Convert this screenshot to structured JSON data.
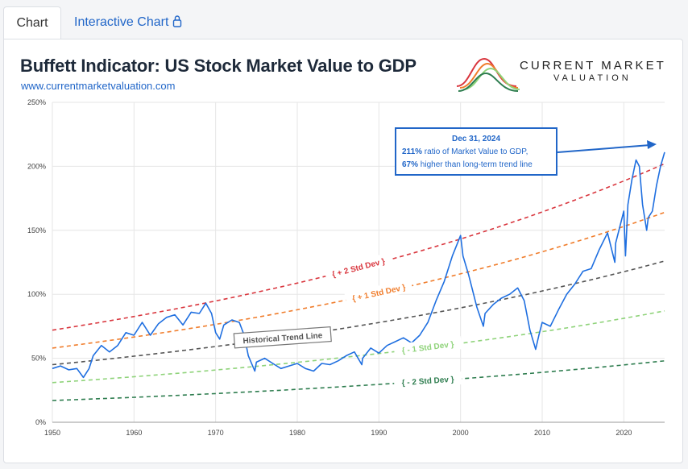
{
  "tabs": [
    {
      "label": "Chart",
      "active": true
    },
    {
      "label": "Interactive Chart",
      "icon": "lock-icon",
      "active": false
    }
  ],
  "header": {
    "title": "Buffett Indicator: US Stock Market Value to GDP",
    "website": "www.currentmarketvaluation.com",
    "logo_line1": "CURRENT MARKET",
    "logo_line2": "VALUATION"
  },
  "colors": {
    "series": "#1f6fe0",
    "plus2": "#d9363e",
    "plus1": "#f07d2c",
    "trend": "#555555",
    "minus1": "#8fd37a",
    "minus2": "#2e7d4f",
    "link": "#2166c8"
  },
  "annotation": {
    "date": "Dec 31, 2024",
    "line2_bold": "211%",
    "line2_rest": " ratio of Market Value to GDP,",
    "line3_bold": "67%",
    "line3_rest": " higher than long-term trend line"
  },
  "chart_data": {
    "type": "line",
    "title": "Buffett Indicator: US Stock Market Value to GDP",
    "xlim": [
      1950,
      2025
    ],
    "ylim": [
      0,
      250
    ],
    "x_ticks": [
      1950,
      1960,
      1970,
      1980,
      1990,
      2000,
      2010,
      2020
    ],
    "y_ticks": [
      {
        "value": 0,
        "label": "0%"
      },
      {
        "value": 50,
        "label": "50%"
      },
      {
        "value": 100,
        "label": "100%"
      },
      {
        "value": 150,
        "label": "150%"
      },
      {
        "value": 200,
        "label": "200%"
      },
      {
        "value": 250,
        "label": "250%"
      }
    ],
    "grid": true,
    "series": [
      {
        "name": "Market Value to GDP",
        "x": [
          1950,
          1951,
          1952,
          1953,
          1953.8,
          1954.5,
          1955,
          1956,
          1957,
          1958,
          1959,
          1960,
          1961,
          1962,
          1963,
          1964,
          1965,
          1966,
          1967,
          1968,
          1968.8,
          1969.5,
          1970,
          1970.5,
          1971,
          1972,
          1972.9,
          1973.5,
          1974,
          1974.8,
          1975,
          1976,
          1977,
          1978,
          1979,
          1980,
          1981,
          1982,
          1983,
          1984,
          1985,
          1986,
          1987,
          1987.9,
          1988,
          1989,
          1990,
          1991,
          1992,
          1993,
          1994,
          1995,
          1996,
          1997,
          1998,
          1999,
          1999.5,
          2000,
          2000.3,
          2001,
          2002,
          2002.8,
          2003,
          2004,
          2005,
          2006,
          2007,
          2007.8,
          2008.5,
          2009.2,
          2009.6,
          2010,
          2011,
          2012,
          2013,
          2014,
          2015,
          2016,
          2017,
          2018,
          2018.9,
          2019,
          2020,
          2020.2,
          2020.5,
          2021,
          2021.5,
          2021.9,
          2022.3,
          2022.8,
          2023,
          2023.5,
          2024,
          2024.5,
          2025
        ],
        "y": [
          42,
          44,
          41,
          42,
          35,
          42,
          52,
          60,
          55,
          60,
          70,
          68,
          78,
          68,
          77,
          82,
          84,
          76,
          86,
          85,
          93,
          85,
          70,
          65,
          76,
          80,
          78,
          68,
          52,
          40,
          47,
          50,
          46,
          42,
          44,
          46,
          42,
          40,
          46,
          45,
          48,
          52,
          55,
          45,
          50,
          58,
          54,
          60,
          63,
          66,
          62,
          68,
          78,
          95,
          110,
          130,
          138,
          146,
          130,
          115,
          90,
          75,
          85,
          92,
          97,
          100,
          105,
          95,
          72,
          57,
          68,
          78,
          75,
          88,
          100,
          108,
          118,
          120,
          135,
          148,
          125,
          140,
          165,
          130,
          170,
          190,
          205,
          200,
          170,
          150,
          160,
          165,
          185,
          200,
          211
        ]
      }
    ],
    "trend_lines": [
      {
        "name": "+ 2 Std Dev",
        "y_start": 72,
        "y_end": 202
      },
      {
        "name": "+ 1 Std Dev",
        "y_start": 58,
        "y_end": 164
      },
      {
        "name": "Historical Trend Line",
        "y_start": 45,
        "y_end": 126
      },
      {
        "name": "- 1 Std Dev",
        "y_start": 31,
        "y_end": 87
      },
      {
        "name": "- 2 Std Dev",
        "y_start": 17,
        "y_end": 48
      }
    ]
  }
}
